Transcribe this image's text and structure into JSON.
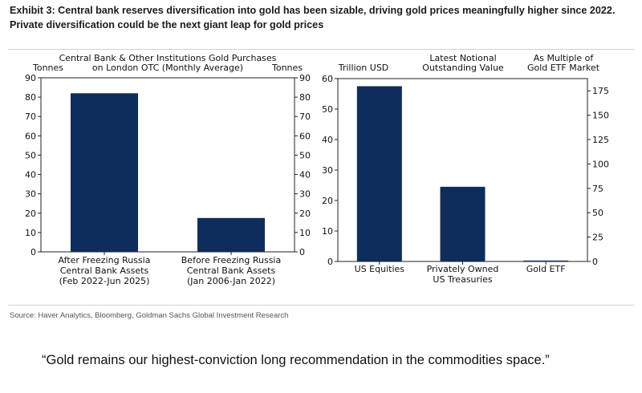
{
  "header": {
    "title": "Exhibit 3: Central bank reserves diversification into gold has been sizable, driving gold prices meaningfully higher since 2022. Private diversification could be the next giant leap for gold prices"
  },
  "chart_data": [
    {
      "type": "bar",
      "title": [
        "Central Bank & Other Institutions Gold Purchases",
        "on London OTC (Monthly Average)"
      ],
      "ylabel_left": "Tonnes",
      "ylabel_right": "Tonnes",
      "ylim": [
        0,
        90
      ],
      "yticks": [
        0,
        10,
        20,
        30,
        40,
        50,
        60,
        70,
        80,
        90
      ],
      "right_yticks": [
        0,
        10,
        20,
        30,
        40,
        50,
        60,
        70,
        80,
        90
      ],
      "categories": [
        [
          "After Freezing Russia",
          "Central Bank Assets",
          "(Feb 2022-Jun 2025)"
        ],
        [
          "Before Freezing Russia",
          "Central Bank Assets",
          "(Jan 2006-Jan 2022)"
        ]
      ],
      "values": [
        82,
        17.5
      ],
      "color": "#0f2d5c"
    },
    {
      "type": "bar",
      "ylabel_left": "Trillion USD",
      "header_middle": [
        "Latest Notional",
        "Outstanding Value"
      ],
      "ylabel_right": [
        "As Multiple of",
        "Gold ETF Market"
      ],
      "ylim": [
        0,
        60
      ],
      "yticks": [
        0,
        10,
        20,
        30,
        40,
        50,
        60
      ],
      "right_ylim": [
        0,
        187.5
      ],
      "right_yticks": [
        0,
        25,
        50,
        75,
        100,
        125,
        150,
        175
      ],
      "categories": [
        [
          "US Equities"
        ],
        [
          "Privately Owned",
          "US Treasuries"
        ],
        [
          "Gold ETF"
        ]
      ],
      "values": [
        57.5,
        24.5,
        0.3
      ],
      "color": "#0f2d5c"
    }
  ],
  "footer": {
    "source": "Source: Haver Analytics, Bloomberg, Goldman Sachs Global Investment Research"
  },
  "quote": "“Gold remains our highest-conviction long recommendation in the commodities space.”"
}
